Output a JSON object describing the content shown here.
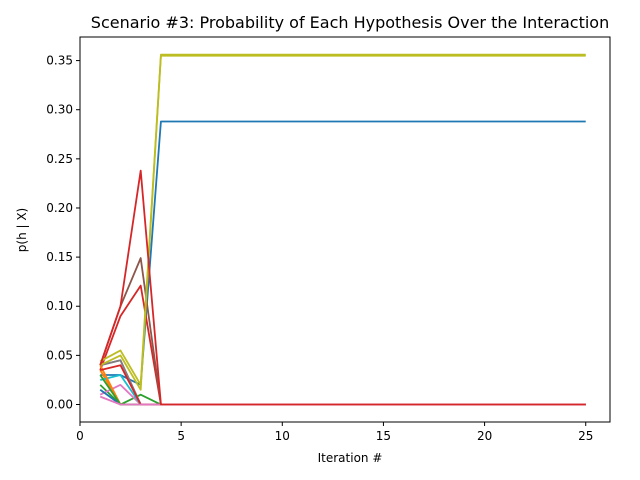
{
  "chart_data": {
    "type": "line",
    "title": "Scenario #3: Probability of Each Hypothesis Over the Interaction",
    "xlabel": "Iteration #",
    "ylabel": "p(h | X)",
    "xlim": [
      0,
      26.2
    ],
    "ylim": [
      -0.0178,
      0.374
    ],
    "xticks": [
      0,
      5,
      10,
      15,
      20,
      25
    ],
    "yticks": [
      0.0,
      0.05,
      0.1,
      0.15,
      0.2,
      0.25,
      0.3,
      0.35
    ],
    "ytick_labels": [
      "0.00",
      "0.05",
      "0.10",
      "0.15",
      "0.20",
      "0.25",
      "0.30",
      "0.35"
    ],
    "grid": false,
    "legend": "none",
    "series": [
      {
        "color": "#1f77b4",
        "values": [
          [
            1,
            0.03
          ],
          [
            2,
            0.03
          ],
          [
            3,
            0.02
          ],
          [
            4,
            0.288
          ],
          [
            25,
            0.288
          ]
        ]
      },
      {
        "color": "#ff7f0e",
        "values": [
          [
            1,
            0.035
          ],
          [
            2,
            0.0
          ],
          [
            3,
            0.0
          ],
          [
            4,
            0.0
          ],
          [
            25,
            0.0
          ]
        ]
      },
      {
        "color": "#2ca02c",
        "values": [
          [
            1,
            0.02
          ],
          [
            2,
            0.0
          ],
          [
            3,
            0.01
          ],
          [
            4,
            0.0
          ],
          [
            25,
            0.0
          ]
        ]
      },
      {
        "color": "#d62728",
        "values": [
          [
            1,
            0.035
          ],
          [
            2,
            0.09
          ],
          [
            3,
            0.121
          ],
          [
            4,
            0.0
          ],
          [
            25,
            0.0
          ]
        ]
      },
      {
        "color": "#9467bd",
        "values": [
          [
            1,
            0.04
          ],
          [
            2,
            0.045
          ],
          [
            3,
            0.0
          ],
          [
            4,
            0.0
          ],
          [
            25,
            0.0
          ]
        ]
      },
      {
        "color": "#8c564b",
        "values": [
          [
            1,
            0.04
          ],
          [
            2,
            0.1
          ],
          [
            3,
            0.149
          ],
          [
            4,
            0.0
          ],
          [
            25,
            0.0
          ]
        ]
      },
      {
        "color": "#e377c2",
        "values": [
          [
            1,
            0.01
          ],
          [
            2,
            0.02
          ],
          [
            3,
            0.0
          ],
          [
            4,
            0.0
          ],
          [
            25,
            0.0
          ]
        ]
      },
      {
        "color": "#7f7f7f",
        "values": [
          [
            1,
            0.04
          ],
          [
            2,
            0.045
          ],
          [
            3,
            0.0
          ],
          [
            4,
            0.0
          ],
          [
            25,
            0.0
          ]
        ]
      },
      {
        "color": "#bcbd22",
        "values": [
          [
            1,
            0.044
          ],
          [
            2,
            0.055
          ],
          [
            3,
            0.02
          ],
          [
            4,
            0.356
          ],
          [
            25,
            0.356
          ]
        ]
      },
      {
        "color": "#17becf",
        "values": [
          [
            1,
            0.025
          ],
          [
            2,
            0.03
          ],
          [
            3,
            0.0
          ],
          [
            4,
            0.0
          ],
          [
            25,
            0.0
          ]
        ]
      },
      {
        "color": "#1f77b4",
        "values": [
          [
            1,
            0.015
          ],
          [
            2,
            0.0
          ],
          [
            3,
            0.0
          ],
          [
            4,
            0.0
          ],
          [
            25,
            0.0
          ]
        ]
      },
      {
        "color": "#ff7f0e",
        "values": [
          [
            1,
            0.04
          ],
          [
            2,
            0.0
          ],
          [
            3,
            0.0
          ],
          [
            4,
            0.0
          ],
          [
            25,
            0.0
          ]
        ]
      },
      {
        "color": "#2ca02c",
        "values": [
          [
            1,
            0.03
          ],
          [
            2,
            0.0
          ],
          [
            3,
            0.0
          ],
          [
            4,
            0.0
          ],
          [
            25,
            0.0
          ]
        ]
      },
      {
        "color": "#d62728",
        "values": [
          [
            1,
            0.035
          ],
          [
            2,
            0.04
          ],
          [
            3,
            0.0
          ],
          [
            4,
            0.0
          ],
          [
            25,
            0.0
          ]
        ]
      },
      {
        "color": "#bcbd22",
        "values": [
          [
            1,
            0.04
          ],
          [
            2,
            0.05
          ],
          [
            3,
            0.015
          ],
          [
            4,
            0.355
          ],
          [
            25,
            0.355
          ]
        ]
      },
      {
        "color": "#e377c2",
        "values": [
          [
            1,
            0.008
          ],
          [
            2,
            0.0
          ],
          [
            3,
            0.0
          ],
          [
            4,
            0.0
          ],
          [
            25,
            0.0
          ]
        ]
      },
      {
        "color": "#d62728",
        "values": [
          [
            1,
            0.04
          ],
          [
            2,
            0.1
          ],
          [
            3,
            0.238
          ],
          [
            4,
            0.0
          ],
          [
            25,
            0.0
          ]
        ]
      }
    ]
  }
}
